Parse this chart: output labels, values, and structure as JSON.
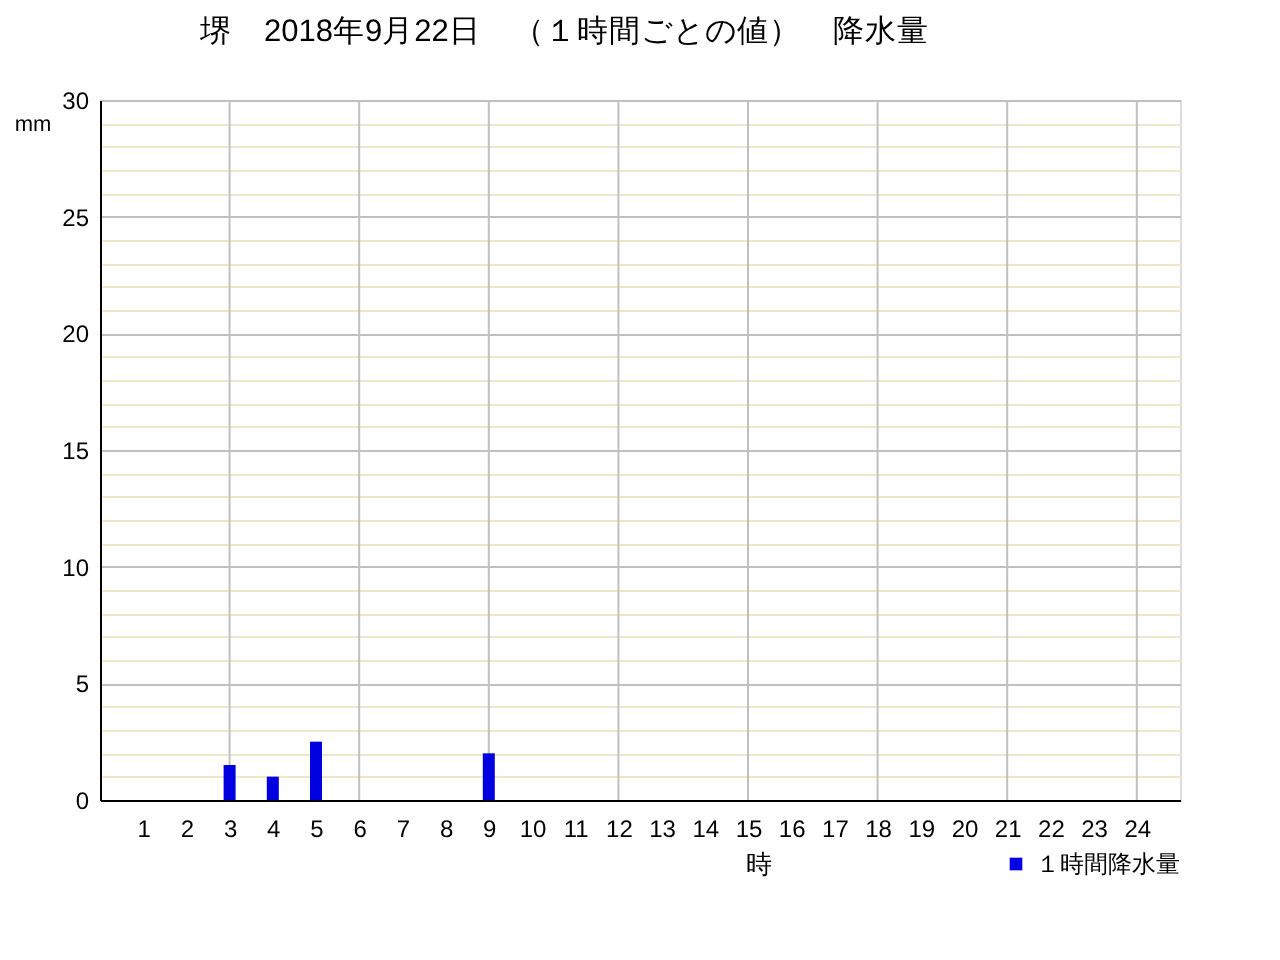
{
  "chart_data": {
    "type": "bar",
    "title": "堺　2018年9月22日　（１時間ごとの値）　降水量",
    "xlabel": "時",
    "ylabel": "mm",
    "x": [
      3,
      4,
      5,
      9
    ],
    "series": [
      {
        "name": "１時間降水量",
        "color": "#0000e0",
        "values": [
          1.5,
          1.0,
          2.5,
          2.0
        ]
      }
    ],
    "xlim": [
      0,
      25
    ],
    "xticks": [
      1,
      2,
      3,
      4,
      5,
      6,
      7,
      8,
      9,
      10,
      11,
      12,
      13,
      14,
      15,
      16,
      17,
      18,
      19,
      20,
      21,
      22,
      23,
      24
    ],
    "ylim": [
      0,
      30
    ],
    "yticks": [
      0,
      {
        "value": 1,
        "label": null
      },
      {
        "value": 2,
        "label": null
      },
      {
        "value": 3,
        "label": null
      },
      {
        "value": 4,
        "label": null
      },
      5,
      {
        "value": 6,
        "label": null
      },
      {
        "value": 7,
        "label": null
      },
      {
        "value": 8,
        "label": null
      },
      {
        "value": 9,
        "label": null
      },
      10,
      {
        "value": 11,
        "label": null
      },
      {
        "value": 12,
        "label": null
      },
      {
        "value": 13,
        "label": null
      },
      {
        "value": 14,
        "label": null
      },
      15,
      {
        "value": 16,
        "label": null
      },
      {
        "value": 17,
        "label": null
      },
      {
        "value": 18,
        "label": null
      },
      {
        "value": 19,
        "label": null
      },
      20,
      {
        "value": 21,
        "label": null
      },
      {
        "value": 22,
        "label": null
      },
      {
        "value": 23,
        "label": null
      },
      {
        "value": 24,
        "label": null
      },
      25,
      {
        "value": 26,
        "label": null
      },
      {
        "value": 27,
        "label": null
      },
      {
        "value": 28,
        "label": null
      },
      {
        "value": 29,
        "label": null
      },
      30
    ],
    "grid": "y",
    "legend": "bottom right",
    "ref_lines": [
      {
        "axis": "x",
        "value": 3,
        "color": "#c0c0c0"
      },
      {
        "axis": "x",
        "value": 6,
        "color": "#c0c0c0"
      },
      {
        "axis": "x",
        "value": 9,
        "color": "#c0c0c0"
      },
      {
        "axis": "x",
        "value": 12,
        "color": "#c0c0c0"
      },
      {
        "axis": "x",
        "value": 15,
        "color": "#c0c0c0"
      },
      {
        "axis": "x",
        "value": 18,
        "color": "#c0c0c0"
      },
      {
        "axis": "x",
        "value": 21,
        "color": "#c0c0c0"
      },
      {
        "axis": "x",
        "value": 24,
        "color": "#c0c0c0"
      }
    ]
  }
}
